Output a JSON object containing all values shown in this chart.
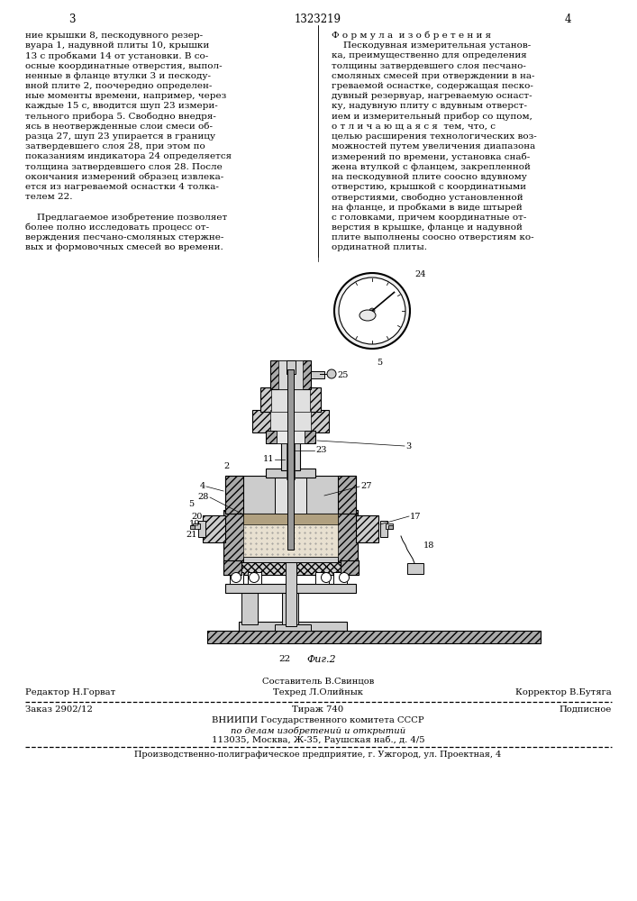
{
  "page_number_left": "3",
  "page_number_center": "1323219",
  "page_number_right": "4",
  "col_left_text": [
    "ние крышки 8, пескодувного резер-",
    "вуара 1, надувной плиты 10, крышки",
    "13 с пробками 14 от установки. В со-",
    "осные координатные отверстия, выпол-",
    "ненные в фланце втулки 3 и пескоду-",
    "вной плите 2, поочередно определен-",
    "ные моменты времени, например, через",
    "каждые 15 с, вводится шуп 23 измери-",
    "тельного прибора 5. Свободно внедря-",
    "ясь в неотвержденные слои смеси об-",
    "разца 27, шуп 23 упирается в границу",
    "затвердевшего слоя 28, при этом по",
    "показаниям индикатора 24 определяется",
    "толщина затвердевшего слоя 28. После",
    "окончания измерений образец извлека-",
    "ется из нагреваемой оснастки 4 толка-",
    "телем 22.",
    "",
    "    Предлагаемое изобретение позволяет",
    "более полно исследовать процесс от-",
    "верждения песчано-смоляных стержне-",
    "вых и формовочных смесей во времени."
  ],
  "col_right_text": [
    "Ф о р м у л а  и з о б р е т е н и я",
    "    Пескодувная измерительная установ-",
    "ка, преимущественно для определения",
    "толщины затвердевшего слоя песчано-",
    "смоляных смесей при отверждении в на-",
    "греваемой оснастке, содержащая песко-",
    "дувный резервуар, нагреваемую оснаст-",
    "ку, надувную плиту с вдувным отверст-",
    "ием и измерительный прибор со щупом,",
    "о т л и ч а ю щ а я с я  тем, что, с",
    "целью расширения технологических воз-",
    "можностей путем увеличения диапазона",
    "измерений по времени, установка снаб-",
    "жена втулкой с фланцем, закрепленной",
    "на пескодувной плите соосно вдувному",
    "отверстию, крышкой с координатными",
    "отверстиями, свободно установленной",
    "на фланце, и пробками в виде штырей",
    "с головками, причем координатные от-",
    "верстия в крышке, фланце и надувной",
    "плите выполнены соосно отверстиям ко-",
    "ординатной плиты."
  ],
  "fig_label": "Фиг.2",
  "fig_number": "22",
  "footer_line1_left": "Редактор Н.Горват",
  "footer_line1_center_top": "Составитель В.Свинцов",
  "footer_line1_center_bot": "Техред Л.Олийнык",
  "footer_line1_right": "Корректор В.Бутяга",
  "footer_line2_left": "Заказ 2902/12",
  "footer_line2_center": "Тираж 740",
  "footer_line2_right": "Подписное",
  "footer_line3": "ВНИИПИ Государственного комитета СССР",
  "footer_line4": "по делам изобретений и открытий",
  "footer_line5": "113035, Москва, Ж-35, Раушская наб., д. 4/5",
  "footer_last": "Производственно-полиграфическое предприятие, г. Ужгород, ул. Проектная, 4",
  "bg_color": "#ffffff",
  "text_color": "#000000",
  "font_size_body": 7.5,
  "font_size_header": 8.5,
  "font_size_footer": 7.2
}
